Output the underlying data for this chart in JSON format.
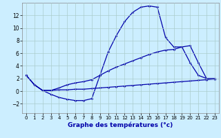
{
  "xlabel": "Graphe des températures (°c)",
  "background_color": "#cceeff",
  "grid_color": "#aacccc",
  "line_color": "#0000aa",
  "xlim": [
    -0.5,
    23.5
  ],
  "ylim": [
    -3.5,
    14.0
  ],
  "xticks": [
    0,
    1,
    2,
    3,
    4,
    5,
    6,
    7,
    8,
    9,
    10,
    11,
    12,
    13,
    14,
    15,
    16,
    17,
    18,
    19,
    20,
    21,
    22,
    23
  ],
  "yticks": [
    -2,
    0,
    2,
    4,
    6,
    8,
    10,
    12
  ],
  "line1_x": [
    0,
    1,
    2,
    3,
    4,
    5,
    6,
    7,
    8,
    9,
    10,
    11,
    12,
    13,
    14,
    15,
    16,
    17,
    18,
    19,
    20,
    21,
    22,
    23
  ],
  "line1_y": [
    2.5,
    1.0,
    0.1,
    -0.5,
    -1.0,
    -1.3,
    -1.5,
    -1.5,
    -1.2,
    2.5,
    6.2,
    8.8,
    11.0,
    12.5,
    13.3,
    13.5,
    13.3,
    8.5,
    7.0,
    7.0,
    4.5,
    2.5,
    2.0,
    2.0
  ],
  "line2_x": [
    0,
    1,
    2,
    3,
    4,
    5,
    6,
    7,
    8,
    9,
    10,
    11,
    12,
    13,
    14,
    15,
    16,
    17,
    18,
    19,
    20,
    21,
    22,
    23
  ],
  "line2_y": [
    2.5,
    1.0,
    0.1,
    0.1,
    0.5,
    1.0,
    1.3,
    1.5,
    1.8,
    2.5,
    3.2,
    3.8,
    4.3,
    4.8,
    5.3,
    5.8,
    6.2,
    6.5,
    6.6,
    7.0,
    7.2,
    4.5,
    2.0,
    2.0
  ],
  "line3_x": [
    0,
    1,
    2,
    3,
    4,
    5,
    6,
    7,
    8,
    9,
    10,
    11,
    12,
    13,
    14,
    15,
    16,
    17,
    18,
    19,
    20,
    21,
    22,
    23
  ],
  "line3_y": [
    2.5,
    1.0,
    0.1,
    0.1,
    0.2,
    0.2,
    0.3,
    0.3,
    0.4,
    0.5,
    0.6,
    0.7,
    0.8,
    0.9,
    1.0,
    1.1,
    1.2,
    1.3,
    1.4,
    1.5,
    1.6,
    1.7,
    1.8,
    1.9
  ],
  "xlabel_fontsize": 6.5,
  "tick_fontsize_x": 5.0,
  "tick_fontsize_y": 5.5
}
